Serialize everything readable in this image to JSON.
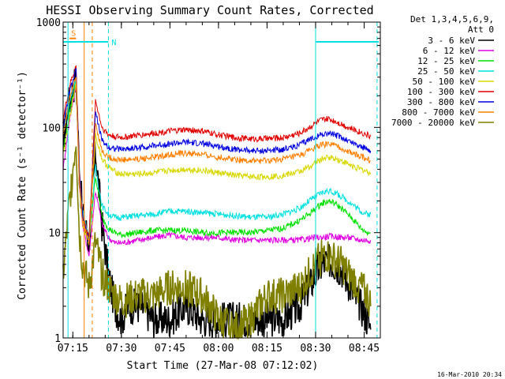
{
  "chart_data": {
    "type": "line",
    "title": "HESSI Observing Summary Count Rates, Corrected",
    "ylabel": "Corrected Count Rate (s⁻¹ detector⁻¹)",
    "xlabel": "Start Time (27-Mar-08 07:12:02)",
    "yscale": "log",
    "ylim": [
      1,
      1000
    ],
    "yticks": [
      {
        "value": 1,
        "label": "1"
      },
      {
        "value": 10,
        "label": "10"
      },
      {
        "value": 100,
        "label": "100"
      },
      {
        "value": 1000,
        "label": "1000"
      }
    ],
    "xlim_min": [
      432,
      530
    ],
    "xticks": [
      {
        "min": 435,
        "label": "07:15"
      },
      {
        "min": 450,
        "label": "07:30"
      },
      {
        "min": 465,
        "label": "07:45"
      },
      {
        "min": 480,
        "label": "08:00"
      },
      {
        "min": 495,
        "label": "08:15"
      },
      {
        "min": 510,
        "label": "08:30"
      },
      {
        "min": 525,
        "label": "08:45"
      }
    ],
    "legend_position": "right",
    "legend_header": [
      "Det 1,3,4,5,6,9,",
      "Att 0"
    ],
    "series": [
      {
        "name": "3 - 6 keV",
        "color": "#000000",
        "x": [
          432,
          434,
          436,
          437,
          438,
          440,
          442,
          444,
          446,
          448,
          450,
          452,
          456,
          460,
          465,
          470,
          475,
          480,
          485,
          490,
          495,
          500,
          505,
          508,
          510,
          512,
          514,
          516,
          518,
          520,
          522,
          524,
          526,
          527
        ],
        "y": [
          80,
          180,
          300,
          40,
          15,
          8,
          60,
          12,
          4,
          2,
          1.5,
          2,
          2,
          1.5,
          1.5,
          2,
          1.5,
          1.5,
          1.5,
          1.5,
          1.5,
          1.5,
          2,
          3,
          4,
          5,
          5.5,
          5,
          4.5,
          3.5,
          2.5,
          2,
          1.5,
          1.2
        ]
      },
      {
        "name": "6 - 12 keV",
        "color": "#e000e0",
        "x": [
          432,
          434,
          436,
          437,
          438,
          440,
          442,
          444,
          446,
          448,
          450,
          455,
          460,
          465,
          470,
          475,
          480,
          485,
          490,
          495,
          500,
          505,
          508,
          510,
          512,
          514,
          516,
          518,
          520,
          522,
          524,
          526,
          527
        ],
        "y": [
          40,
          120,
          250,
          30,
          12,
          6,
          25,
          12,
          9,
          8,
          8,
          8.5,
          9,
          9.5,
          9,
          9,
          9,
          8.5,
          8.5,
          8.5,
          8.5,
          8.5,
          8.8,
          9,
          9,
          9.2,
          9.2,
          9,
          9,
          8.8,
          8.5,
          8.5,
          8.5
        ]
      },
      {
        "name": "12 - 25 keV",
        "color": "#00e000",
        "x": [
          432,
          434,
          436,
          437,
          438,
          440,
          442,
          444,
          446,
          448,
          450,
          455,
          460,
          465,
          470,
          475,
          480,
          485,
          490,
          495,
          500,
          505,
          508,
          510,
          512,
          514,
          516,
          518,
          520,
          522,
          524,
          526,
          527
        ],
        "y": [
          60,
          140,
          280,
          35,
          14,
          8,
          35,
          14,
          11,
          10,
          9.5,
          10,
          10.5,
          10.5,
          10.5,
          10,
          10,
          10,
          10,
          10.5,
          11,
          13,
          15,
          17,
          19,
          20,
          19,
          17,
          15,
          13,
          11,
          10,
          10
        ]
      },
      {
        "name": "25 - 50 keV",
        "color": "#00e0e0",
        "x": [
          432,
          434,
          436,
          437,
          438,
          440,
          442,
          444,
          446,
          448,
          450,
          455,
          460,
          465,
          470,
          475,
          480,
          485,
          490,
          495,
          500,
          505,
          508,
          510,
          512,
          514,
          516,
          518,
          520,
          522,
          524,
          526,
          527
        ],
        "y": [
          90,
          170,
          300,
          40,
          16,
          9,
          42,
          18,
          15,
          14,
          14,
          14.5,
          15,
          16,
          16,
          15.5,
          15,
          14.5,
          14,
          14,
          15,
          17,
          20,
          22,
          24,
          25,
          24,
          22,
          20,
          18,
          16,
          15,
          15
        ]
      },
      {
        "name": "50 - 100 keV",
        "color": "#d8d800",
        "x": [
          432,
          434,
          436,
          437,
          438,
          440,
          442,
          444,
          446,
          448,
          450,
          455,
          460,
          465,
          470,
          475,
          480,
          485,
          490,
          495,
          500,
          505,
          508,
          510,
          512,
          514,
          516,
          518,
          520,
          522,
          524,
          526,
          527
        ],
        "y": [
          55,
          120,
          270,
          30,
          12,
          8,
          85,
          50,
          42,
          38,
          36,
          36,
          37,
          39,
          40,
          39,
          37,
          35,
          34,
          34,
          35,
          38,
          42,
          46,
          50,
          52,
          51,
          48,
          45,
          42,
          40,
          38,
          37
        ]
      },
      {
        "name": "100 - 300 keV",
        "color": "#e00000",
        "x": [
          432,
          434,
          436,
          437,
          438,
          440,
          442,
          444,
          446,
          448,
          450,
          455,
          460,
          465,
          470,
          475,
          480,
          485,
          490,
          495,
          500,
          505,
          508,
          510,
          512,
          514,
          516,
          518,
          520,
          522,
          524,
          526,
          527
        ],
        "y": [
          120,
          250,
          380,
          40,
          15,
          9,
          180,
          100,
          85,
          82,
          80,
          84,
          88,
          92,
          95,
          92,
          85,
          80,
          78,
          78,
          80,
          88,
          100,
          110,
          118,
          120,
          115,
          108,
          100,
          95,
          90,
          85,
          82
        ]
      },
      {
        "name": "300 - 800 keV",
        "color": "#0000e0",
        "x": [
          432,
          434,
          436,
          437,
          438,
          440,
          442,
          444,
          446,
          448,
          450,
          455,
          460,
          465,
          470,
          475,
          480,
          485,
          490,
          495,
          500,
          505,
          508,
          510,
          512,
          514,
          516,
          518,
          520,
          522,
          524,
          526,
          527
        ],
        "y": [
          100,
          220,
          350,
          35,
          14,
          8,
          140,
          75,
          65,
          63,
          62,
          64,
          67,
          70,
          72,
          70,
          66,
          62,
          60,
          60,
          62,
          68,
          76,
          82,
          86,
          88,
          85,
          80,
          75,
          70,
          66,
          62,
          60
        ]
      },
      {
        "name": "800 - 7000 keV",
        "color": "#ff8000",
        "x": [
          432,
          434,
          436,
          437,
          438,
          440,
          442,
          444,
          446,
          448,
          450,
          455,
          460,
          465,
          470,
          475,
          480,
          485,
          490,
          495,
          500,
          505,
          508,
          510,
          512,
          514,
          516,
          518,
          520,
          522,
          524,
          526,
          527
        ],
        "y": [
          85,
          190,
          320,
          32,
          13,
          8,
          110,
          60,
          52,
          50,
          49,
          50,
          52,
          55,
          57,
          55,
          52,
          50,
          48,
          48,
          50,
          54,
          60,
          65,
          68,
          70,
          67,
          63,
          59,
          56,
          53,
          50,
          48
        ]
      },
      {
        "name": "7000 - 20000 keV",
        "color": "#808000",
        "x": [
          432,
          434,
          436,
          437,
          438,
          440,
          442,
          444,
          446,
          448,
          450,
          455,
          460,
          465,
          470,
          475,
          480,
          485,
          490,
          495,
          500,
          505,
          508,
          510,
          512,
          514,
          516,
          518,
          520,
          522,
          524,
          526,
          527
        ],
        "y": [
          4,
          20,
          80,
          10,
          5,
          3,
          8,
          4,
          3,
          2.5,
          2.2,
          2.5,
          2.5,
          3,
          3,
          2.5,
          1.5,
          1.2,
          1.5,
          2.5,
          2.5,
          3,
          4,
          5,
          6,
          6,
          5.5,
          5,
          4,
          3.5,
          3,
          2.5,
          2
        ]
      }
    ],
    "annotations": [
      {
        "label": "S",
        "color": "#ff8000",
        "x_min": [
          434,
          436
        ],
        "y": 700
      },
      {
        "label": "N",
        "color": "#00e0e0",
        "x_min": [
          432,
          446
        ],
        "y": 650
      },
      {
        "label": "",
        "color": "#00e0e0",
        "x_min": [
          510,
          529.5
        ],
        "y": 650
      }
    ],
    "vlines": [
      {
        "x_min": 433.5,
        "color": "#00e0e0",
        "style": "solid"
      },
      {
        "x_min": 438.5,
        "color": "#ff8000",
        "style": "solid"
      },
      {
        "x_min": 441,
        "color": "#ff8000",
        "style": "dashed"
      },
      {
        "x_min": 446,
        "color": "#00e0e0",
        "style": "dashed"
      },
      {
        "x_min": 510,
        "color": "#00e0e0",
        "style": "solid"
      },
      {
        "x_min": 529,
        "color": "#00e0e0",
        "style": "dashed"
      }
    ]
  },
  "footer_timestamp": "16-Mar-2010 20:34"
}
